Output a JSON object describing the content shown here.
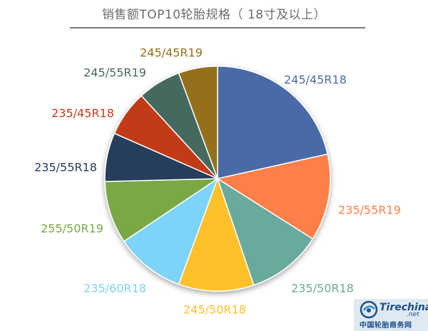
{
  "chart_data": {
    "type": "pie",
    "title": "销售额TOP10轮胎规格（ 18寸及以上）",
    "categories": [
      "245/45R18",
      "235/55R19",
      "235/50R18",
      "245/50R18",
      "235/60R18",
      "255/50R19",
      "235/55R18",
      "235/45R18",
      "245/55R19",
      "245/45R19"
    ],
    "values": [
      21.5,
      12.5,
      10.8,
      10.8,
      10.0,
      9.0,
      7.0,
      6.6,
      6.2,
      5.6
    ],
    "colors": [
      "#4a6ba6",
      "#ff7f4a",
      "#6ba99e",
      "#ffc12c",
      "#7dd3f8",
      "#79a844",
      "#253d5c",
      "#c23b17",
      "#45695e",
      "#94701a"
    ],
    "start_angle_deg": 0,
    "direction": "clockwise"
  },
  "watermark": {
    "site": "Tirechina",
    "site_sub": ".net",
    "name": "中国轮胎商务网"
  }
}
